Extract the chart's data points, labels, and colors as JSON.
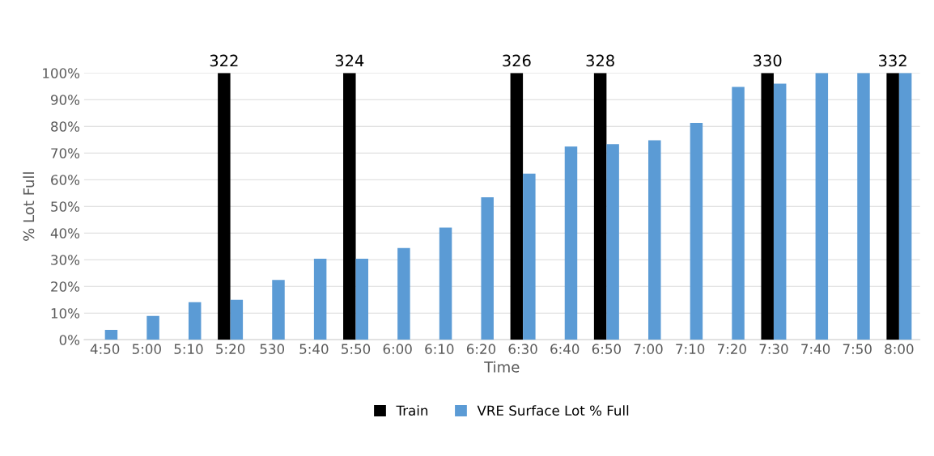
{
  "chart_data": {
    "type": "bar",
    "xlabel": "Time",
    "ylabel": "% Lot Full",
    "categories": [
      "4:50",
      "5:00",
      "5:10",
      "5:20",
      "530",
      "5:40",
      "5:50",
      "6:00",
      "6:10",
      "6:20",
      "6:30",
      "6:40",
      "6:50",
      "7:00",
      "7:10",
      "7:20",
      "7:30",
      "7:40",
      "7:50",
      "8:00"
    ],
    "series": [
      {
        "name": "Train",
        "color": "#000000",
        "values": [
          null,
          null,
          null,
          100,
          null,
          null,
          100,
          null,
          null,
          null,
          100,
          null,
          100,
          null,
          null,
          null,
          100,
          null,
          null,
          100
        ]
      },
      {
        "name": "VRE Surface Lot % Full",
        "color": "#5b9bd5",
        "values": [
          3.7,
          8.9,
          14.1,
          15,
          22.4,
          30.4,
          30.4,
          34.4,
          42,
          53.4,
          62.3,
          72.4,
          73.3,
          74.8,
          81.3,
          94.8,
          96,
          100,
          100,
          100
        ]
      }
    ],
    "ylim": [
      0,
      100
    ],
    "yticks": [
      {
        "value": 0,
        "label": "0%"
      },
      {
        "value": 10,
        "label": "10%"
      },
      {
        "value": 20,
        "label": "20%"
      },
      {
        "value": 30,
        "label": "30%"
      },
      {
        "value": 40,
        "label": "40%"
      },
      {
        "value": 50,
        "label": "50%"
      },
      {
        "value": 60,
        "label": "60%"
      },
      {
        "value": 70,
        "label": "70%"
      },
      {
        "value": 80,
        "label": "80%"
      },
      {
        "value": 90,
        "label": "90%"
      },
      {
        "value": 100,
        "label": "100%"
      }
    ],
    "annotations": [
      {
        "text": "322",
        "x": "5:20",
        "y": 100
      },
      {
        "text": "324",
        "x": "5:50",
        "y": 100
      },
      {
        "text": "326",
        "x": "6:30",
        "y": 100
      },
      {
        "text": "328",
        "x": "6:50",
        "y": 100
      },
      {
        "text": "330",
        "x": "7:30",
        "y": 100
      },
      {
        "text": "332",
        "x": "8:00",
        "y": 100
      }
    ],
    "grid": "y",
    "legend": "bottom"
  }
}
